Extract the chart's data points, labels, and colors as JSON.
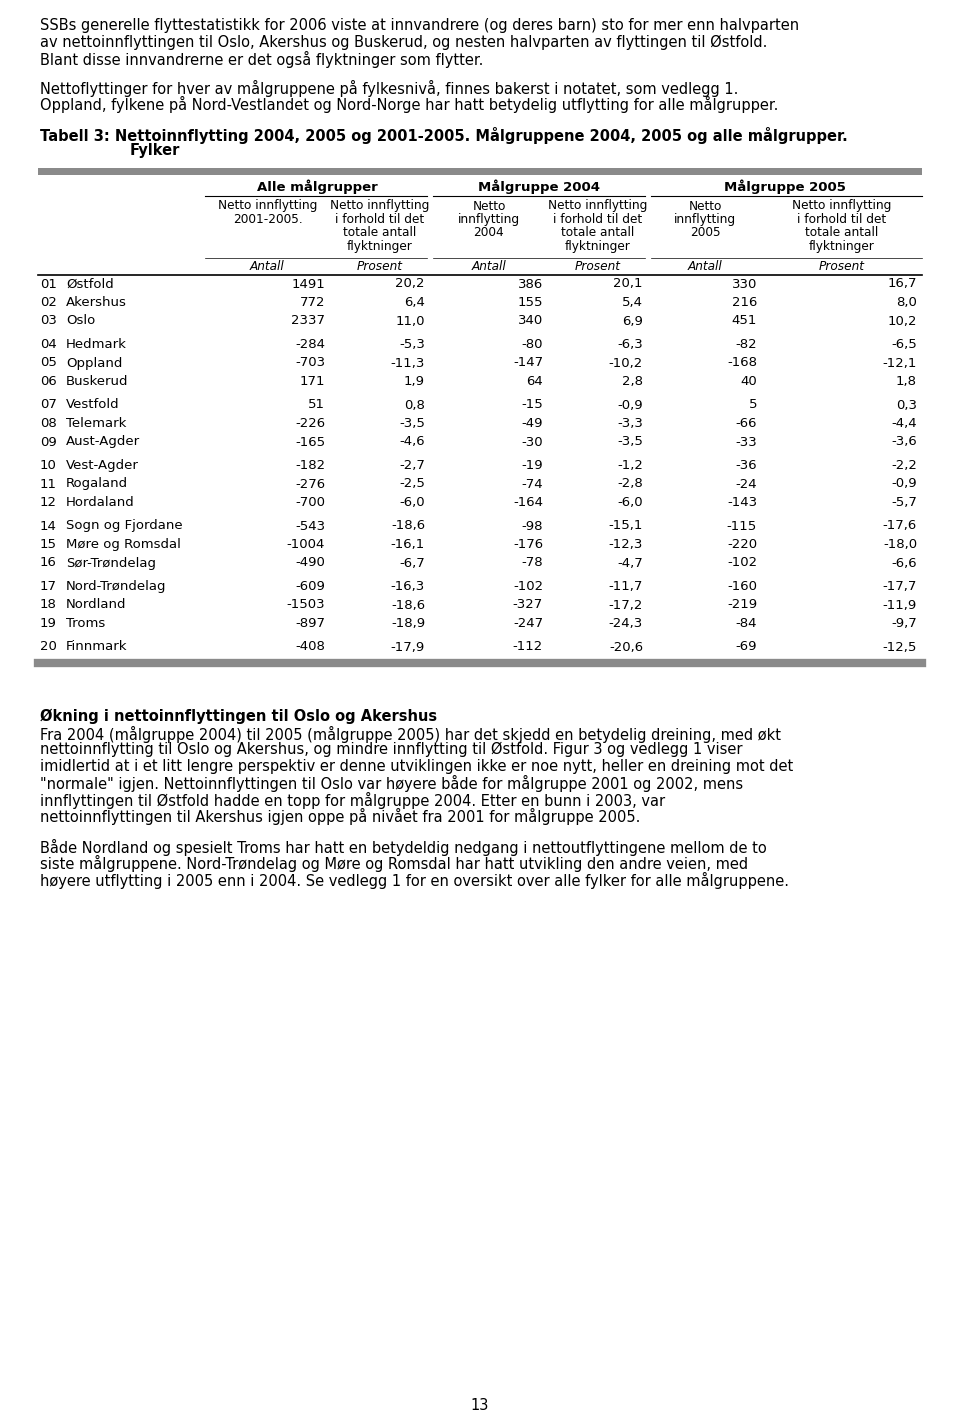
{
  "intro1": "SSBs generelle flyttestatistikk for 2006 viste at innvandrere (og deres barn) sto for mer enn halvparten\nav nettoinnflyttingen til Oslo, Akershus og Buskerud, og nesten halvparten av flyttingen til Østfold.\nBlant disse innvandrerne er det også flyktninger som flytter.",
  "intro2": "Nettoflyttinger for hver av målgruppene på fylkesnivå, finnes bakerst i notatet, som vedlegg 1.\nOppland, fylkene på Nord-Vestlandet og Nord-Norge har hatt betydelig utflytting for alle målgrupper.",
  "table_title_line1": "Tabell 3: Nettoinnflytting 2004, 2005 og 2001-2005. Målgruppene 2004, 2005 og alle målgrupper.",
  "table_title_line2": "Fylker",
  "col_group1": "Alle målgrupper",
  "col_group2": "Målgruppe 2004",
  "col_group3": "Målgruppe 2005",
  "rows": [
    {
      "num": "01",
      "name": "Østfold",
      "v1": "1491",
      "v2": "20,2",
      "v3": "386",
      "v4": "20,1",
      "v5": "330",
      "v6": "16,7"
    },
    {
      "num": "02",
      "name": "Akershus",
      "v1": "772",
      "v2": "6,4",
      "v3": "155",
      "v4": "5,4",
      "v5": "216",
      "v6": "8,0"
    },
    {
      "num": "03",
      "name": "Oslo",
      "v1": "2337",
      "v2": "11,0",
      "v3": "340",
      "v4": "6,9",
      "v5": "451",
      "v6": "10,2"
    },
    {
      "num": "04",
      "name": "Hedmark",
      "v1": "-284",
      "v2": "-5,3",
      "v3": "-80",
      "v4": "-6,3",
      "v5": "-82",
      "v6": "-6,5"
    },
    {
      "num": "05",
      "name": "Oppland",
      "v1": "-703",
      "v2": "-11,3",
      "v3": "-147",
      "v4": "-10,2",
      "v5": "-168",
      "v6": "-12,1"
    },
    {
      "num": "06",
      "name": "Buskerud",
      "v1": "171",
      "v2": "1,9",
      "v3": "64",
      "v4": "2,8",
      "v5": "40",
      "v6": "1,8"
    },
    {
      "num": "07",
      "name": "Vestfold",
      "v1": "51",
      "v2": "0,8",
      "v3": "-15",
      "v4": "-0,9",
      "v5": "5",
      "v6": "0,3"
    },
    {
      "num": "08",
      "name": "Telemark",
      "v1": "-226",
      "v2": "-3,5",
      "v3": "-49",
      "v4": "-3,3",
      "v5": "-66",
      "v6": "-4,4"
    },
    {
      "num": "09",
      "name": "Aust-Agder",
      "v1": "-165",
      "v2": "-4,6",
      "v3": "-30",
      "v4": "-3,5",
      "v5": "-33",
      "v6": "-3,6"
    },
    {
      "num": "10",
      "name": "Vest-Agder",
      "v1": "-182",
      "v2": "-2,7",
      "v3": "-19",
      "v4": "-1,2",
      "v5": "-36",
      "v6": "-2,2"
    },
    {
      "num": "11",
      "name": "Rogaland",
      "v1": "-276",
      "v2": "-2,5",
      "v3": "-74",
      "v4": "-2,8",
      "v5": "-24",
      "v6": "-0,9"
    },
    {
      "num": "12",
      "name": "Hordaland",
      "v1": "-700",
      "v2": "-6,0",
      "v3": "-164",
      "v4": "-6,0",
      "v5": "-143",
      "v6": "-5,7"
    },
    {
      "num": "14",
      "name": "Sogn og Fjordane",
      "v1": "-543",
      "v2": "-18,6",
      "v3": "-98",
      "v4": "-15,1",
      "v5": "-115",
      "v6": "-17,6"
    },
    {
      "num": "15",
      "name": "Møre og Romsdal",
      "v1": "-1004",
      "v2": "-16,1",
      "v3": "-176",
      "v4": "-12,3",
      "v5": "-220",
      "v6": "-18,0"
    },
    {
      "num": "16",
      "name": "Sør-Trøndelag",
      "v1": "-490",
      "v2": "-6,7",
      "v3": "-78",
      "v4": "-4,7",
      "v5": "-102",
      "v6": "-6,6"
    },
    {
      "num": "17",
      "name": "Nord-Trøndelag",
      "v1": "-609",
      "v2": "-16,3",
      "v3": "-102",
      "v4": "-11,7",
      "v5": "-160",
      "v6": "-17,7"
    },
    {
      "num": "18",
      "name": "Nordland",
      "v1": "-1503",
      "v2": "-18,6",
      "v3": "-327",
      "v4": "-17,2",
      "v5": "-219",
      "v6": "-11,9"
    },
    {
      "num": "19",
      "name": "Troms",
      "v1": "-897",
      "v2": "-18,9",
      "v3": "-247",
      "v4": "-24,3",
      "v5": "-84",
      "v6": "-9,7"
    },
    {
      "num": "20",
      "name": "Finnmark",
      "v1": "-408",
      "v2": "-17,9",
      "v3": "-112",
      "v4": "-20,6",
      "v5": "-69",
      "v6": "-12,5"
    }
  ],
  "group_breaks": [
    3,
    6,
    9,
    12,
    15,
    18
  ],
  "section_heading": "Økning i nettoinnflyttingen til Oslo og Akershus",
  "section_para1_lines": [
    "Fra 2004 (målgruppe 2004) til 2005 (målgruppe 2005) har det skjedd en betydelig dreining, med økt",
    "nettoinnflytting til Oslo og Akershus, og mindre innflytting til Østfold. Figur 3 og vedlegg 1 viser",
    "imidlertid at i et litt lengre perspektiv er denne utviklingen ikke er noe nytt, heller en dreining mot det",
    "\"normale\" igjen. Nettoinnflyttingen til Oslo var høyere både for målgruppe 2001 og 2002, mens",
    "innflyttingen til Østfold hadde en topp for målgruppe 2004. Etter en bunn i 2003, var",
    "nettoinnflyttingen til Akershus igjen oppe på nivået fra 2001 for målgruppe 2005."
  ],
  "section_para2_lines": [
    "Både Nordland og spesielt Troms har hatt en betydeldig nedgang i nettoutflyttingene mellom de to",
    "siste målgruppene. Nord-Trøndelag og Møre og Romsdal har hatt utvikling den andre veien, med",
    "høyere utflytting i 2005 enn i 2004. Se vedlegg 1 for en oversikt over alle fylker for alle målgruppene."
  ],
  "page_number": "13"
}
